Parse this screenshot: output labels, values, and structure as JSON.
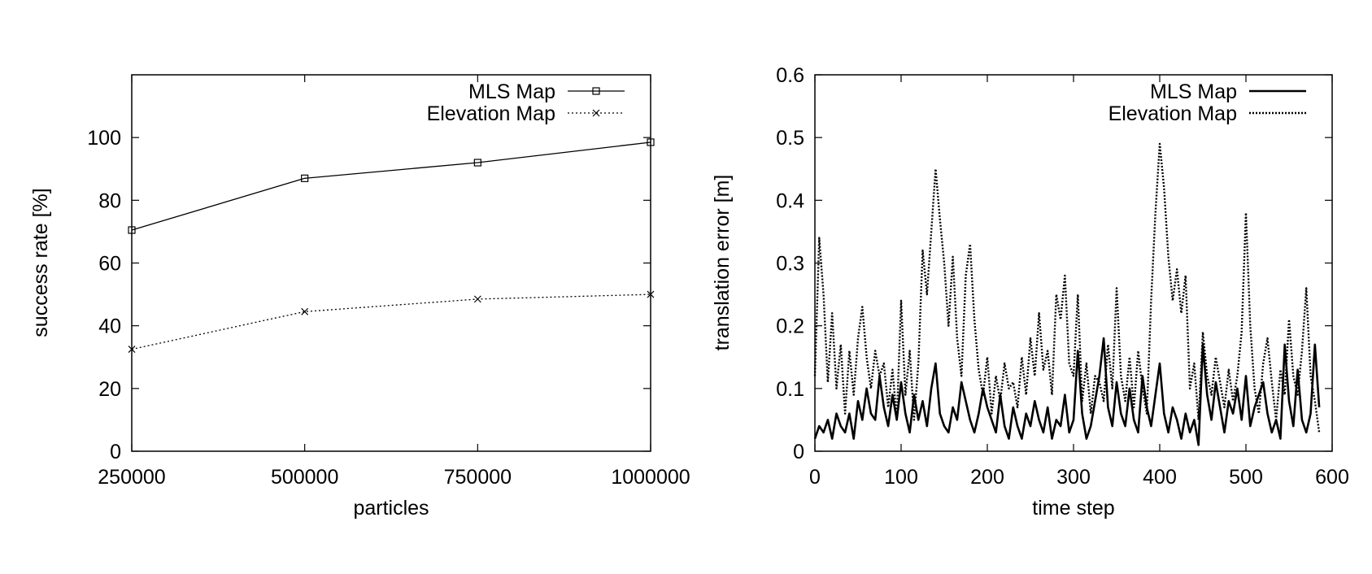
{
  "chart_data": [
    {
      "type": "line",
      "xlabel": "particles",
      "ylabel": "success rate [%]",
      "xlim": [
        250000,
        1000000
      ],
      "ylim": [
        0,
        120
      ],
      "xticks": [
        "250000",
        "500000",
        "750000",
        "1000000"
      ],
      "yticks": [
        "0",
        "20",
        "40",
        "60",
        "80",
        "100"
      ],
      "xtick_values": [
        250000,
        500000,
        750000,
        1000000
      ],
      "ytick_values": [
        0,
        20,
        40,
        60,
        80,
        100
      ],
      "legend": "top-right",
      "grid": false,
      "series": [
        {
          "name": "MLS Map",
          "style": "solid",
          "marker": "square",
          "color": "#000000",
          "x": [
            250000,
            500000,
            750000,
            1000000
          ],
          "values": [
            70.5,
            87,
            92,
            98.5
          ]
        },
        {
          "name": "Elevation Map",
          "style": "dotted",
          "marker": "x",
          "color": "#000000",
          "x": [
            250000,
            500000,
            750000,
            1000000
          ],
          "values": [
            32.5,
            44.5,
            48.5,
            50
          ]
        }
      ]
    },
    {
      "type": "line",
      "xlabel": "time step",
      "ylabel": "translation error [m]",
      "xlim": [
        0,
        600
      ],
      "ylim": [
        0,
        0.6
      ],
      "xticks": [
        "0",
        "100",
        "200",
        "300",
        "400",
        "500",
        "600"
      ],
      "yticks": [
        "0",
        "0.1",
        "0.2",
        "0.3",
        "0.4",
        "0.5",
        "0.6"
      ],
      "xtick_values": [
        0,
        100,
        200,
        300,
        400,
        500,
        600
      ],
      "ytick_values": [
        0,
        0.1,
        0.2,
        0.3,
        0.4,
        0.5,
        0.6
      ],
      "legend": "top-right",
      "grid": false,
      "series": [
        {
          "name": "MLS Map",
          "style": "solid-thick",
          "color": "#000000",
          "x": [
            0,
            5,
            10,
            15,
            20,
            25,
            30,
            35,
            40,
            45,
            50,
            55,
            60,
            65,
            70,
            75,
            80,
            85,
            90,
            95,
            100,
            105,
            110,
            115,
            120,
            125,
            130,
            135,
            140,
            145,
            150,
            155,
            160,
            165,
            170,
            175,
            180,
            185,
            190,
            195,
            200,
            205,
            210,
            215,
            220,
            225,
            230,
            235,
            240,
            245,
            250,
            255,
            260,
            265,
            270,
            275,
            280,
            285,
            290,
            295,
            300,
            305,
            310,
            315,
            320,
            325,
            330,
            335,
            340,
            345,
            350,
            355,
            360,
            365,
            370,
            375,
            380,
            385,
            390,
            395,
            400,
            405,
            410,
            415,
            420,
            425,
            430,
            435,
            440,
            445,
            450,
            455,
            460,
            465,
            470,
            475,
            480,
            485,
            490,
            495,
            500,
            505,
            510,
            515,
            520,
            525,
            530,
            535,
            540,
            545,
            550,
            555,
            560,
            565,
            570,
            575,
            580,
            585
          ],
          "values": [
            0.02,
            0.04,
            0.03,
            0.05,
            0.02,
            0.06,
            0.04,
            0.03,
            0.06,
            0.02,
            0.08,
            0.05,
            0.1,
            0.06,
            0.05,
            0.12,
            0.07,
            0.04,
            0.09,
            0.05,
            0.11,
            0.06,
            0.03,
            0.09,
            0.05,
            0.08,
            0.04,
            0.1,
            0.14,
            0.06,
            0.04,
            0.03,
            0.07,
            0.05,
            0.11,
            0.08,
            0.05,
            0.03,
            0.06,
            0.1,
            0.07,
            0.05,
            0.03,
            0.09,
            0.04,
            0.02,
            0.07,
            0.04,
            0.02,
            0.06,
            0.04,
            0.08,
            0.05,
            0.03,
            0.07,
            0.02,
            0.05,
            0.04,
            0.09,
            0.03,
            0.05,
            0.16,
            0.06,
            0.02,
            0.04,
            0.08,
            0.12,
            0.18,
            0.07,
            0.04,
            0.11,
            0.06,
            0.04,
            0.1,
            0.05,
            0.03,
            0.12,
            0.07,
            0.04,
            0.09,
            0.14,
            0.06,
            0.03,
            0.07,
            0.05,
            0.02,
            0.06,
            0.03,
            0.05,
            0.01,
            0.17,
            0.09,
            0.05,
            0.11,
            0.07,
            0.03,
            0.08,
            0.06,
            0.1,
            0.05,
            0.12,
            0.04,
            0.07,
            0.09,
            0.11,
            0.06,
            0.03,
            0.05,
            0.02,
            0.17,
            0.08,
            0.04,
            0.13,
            0.05,
            0.03,
            0.06,
            0.17,
            0.07
          ]
        },
        {
          "name": "Elevation Map",
          "style": "dotted-thick",
          "color": "#000000",
          "x": [
            0,
            5,
            10,
            15,
            20,
            25,
            30,
            35,
            40,
            45,
            50,
            55,
            60,
            65,
            70,
            75,
            80,
            85,
            90,
            95,
            100,
            105,
            110,
            115,
            120,
            125,
            130,
            135,
            140,
            145,
            150,
            155,
            160,
            165,
            170,
            175,
            180,
            185,
            190,
            195,
            200,
            205,
            210,
            215,
            220,
            225,
            230,
            235,
            240,
            245,
            250,
            255,
            260,
            265,
            270,
            275,
            280,
            285,
            290,
            295,
            300,
            305,
            310,
            315,
            320,
            325,
            330,
            335,
            340,
            345,
            350,
            355,
            360,
            365,
            370,
            375,
            380,
            385,
            390,
            395,
            400,
            405,
            410,
            415,
            420,
            425,
            430,
            435,
            440,
            445,
            450,
            455,
            460,
            465,
            470,
            475,
            480,
            485,
            490,
            495,
            500,
            505,
            510,
            515,
            520,
            525,
            530,
            535,
            540,
            545,
            550,
            555,
            560,
            565,
            570,
            575,
            580,
            585
          ],
          "values": [
            0.12,
            0.34,
            0.25,
            0.11,
            0.22,
            0.1,
            0.17,
            0.06,
            0.16,
            0.09,
            0.18,
            0.23,
            0.15,
            0.1,
            0.16,
            0.12,
            0.14,
            0.07,
            0.13,
            0.05,
            0.24,
            0.09,
            0.16,
            0.05,
            0.14,
            0.32,
            0.25,
            0.35,
            0.45,
            0.37,
            0.3,
            0.2,
            0.31,
            0.18,
            0.12,
            0.28,
            0.33,
            0.21,
            0.13,
            0.09,
            0.15,
            0.06,
            0.12,
            0.08,
            0.14,
            0.1,
            0.11,
            0.07,
            0.15,
            0.09,
            0.18,
            0.12,
            0.22,
            0.13,
            0.16,
            0.09,
            0.25,
            0.21,
            0.28,
            0.14,
            0.12,
            0.25,
            0.08,
            0.14,
            0.06,
            0.12,
            0.11,
            0.08,
            0.17,
            0.1,
            0.26,
            0.12,
            0.08,
            0.15,
            0.07,
            0.16,
            0.1,
            0.06,
            0.24,
            0.38,
            0.49,
            0.42,
            0.31,
            0.24,
            0.29,
            0.22,
            0.28,
            0.1,
            0.14,
            0.05,
            0.19,
            0.12,
            0.09,
            0.15,
            0.11,
            0.07,
            0.13,
            0.08,
            0.12,
            0.19,
            0.38,
            0.2,
            0.1,
            0.06,
            0.14,
            0.18,
            0.11,
            0.05,
            0.13,
            0.09,
            0.21,
            0.12,
            0.09,
            0.16,
            0.26,
            0.12,
            0.08,
            0.03
          ]
        }
      ]
    }
  ]
}
